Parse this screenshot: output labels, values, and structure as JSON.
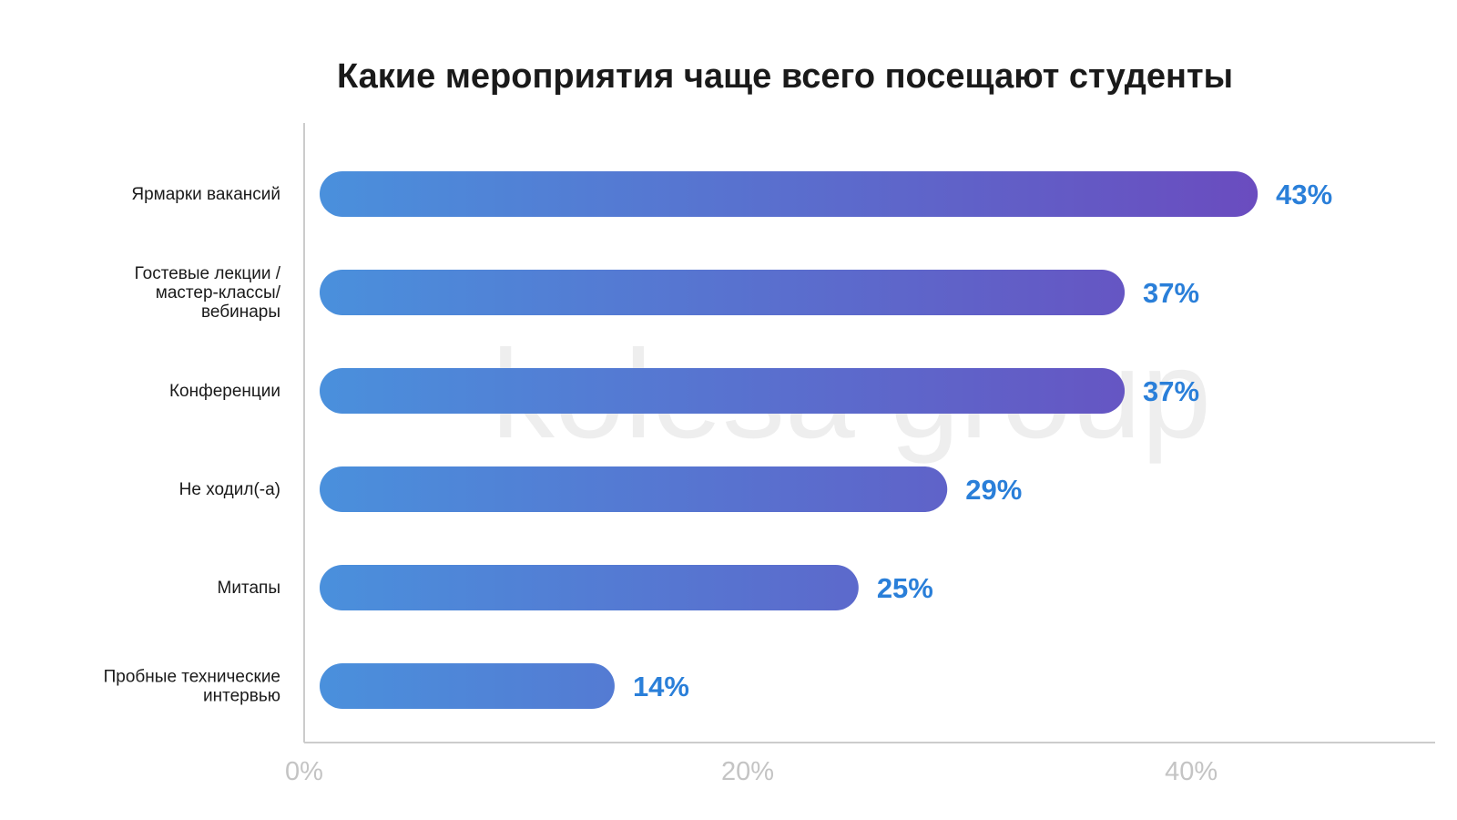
{
  "chart_data": {
    "type": "bar",
    "orientation": "horizontal",
    "title": "Какие мероприятия чаще всего посещают студенты",
    "categories": [
      [
        "Ярмарки вакансий"
      ],
      [
        "Гостевые лекции /",
        "мастер-классы/",
        "вебинары"
      ],
      [
        "Конференции"
      ],
      [
        "Не ходил(-а)"
      ],
      [
        "Митапы"
      ],
      [
        "Пробные технические",
        "интервью"
      ]
    ],
    "values": [
      43,
      37,
      37,
      29,
      25,
      14
    ],
    "value_labels": [
      "43%",
      "37%",
      "37%",
      "29%",
      "25%",
      "14%"
    ],
    "xlim": [
      0,
      51
    ],
    "xticks": [
      0,
      20,
      40
    ],
    "xtick_labels": [
      "0%",
      "20%",
      "40%"
    ],
    "grid": false,
    "watermark": "kolesa group",
    "colors": {
      "bar_start": "#4a90dc",
      "bar_end": "#6a4cbf",
      "value_label": "#2a7fd9",
      "axis": "#cccccc",
      "tick_label": "#c4c4c4",
      "category_label": "#1a1a1a",
      "title": "#1a1a1a",
      "watermark": "#eeeeee"
    }
  }
}
